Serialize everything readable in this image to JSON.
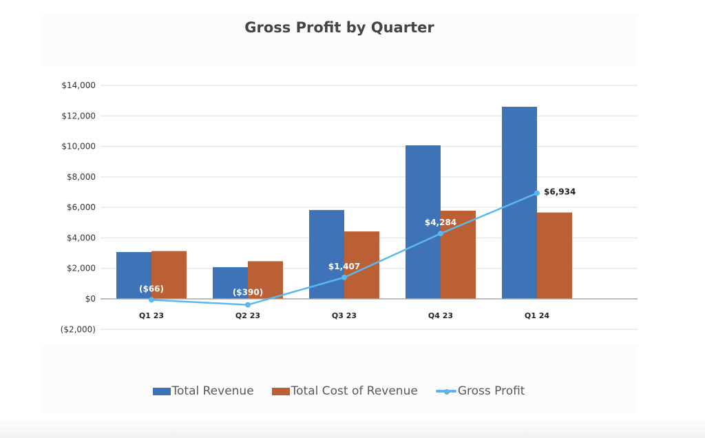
{
  "chart_data": {
    "type": "bar",
    "title": "Gross Profit by Quarter",
    "xlabel": "",
    "ylabel": "",
    "categories": [
      "Q1 23",
      "Q2 23",
      "Q3 23",
      "Q4 23",
      "Q1 24"
    ],
    "ylim": [
      -2000,
      14000
    ],
    "yticks": [
      -2000,
      0,
      2000,
      4000,
      6000,
      8000,
      10000,
      12000,
      14000
    ],
    "ytick_labels": [
      "($2,000)",
      "$0",
      "$2,000",
      "$4,000",
      "$6,000",
      "$8,000",
      "$10,000",
      "$12,000",
      "$14,000"
    ],
    "grid": true,
    "legend_position": "bottom",
    "series": [
      {
        "name": "Total Revenue",
        "type": "bar",
        "color": "#3f73b8",
        "values": [
          3070,
          2080,
          5830,
          10070,
          12600
        ]
      },
      {
        "name": "Total Cost of Revenue",
        "type": "bar",
        "color": "#bb5f35",
        "values": [
          3136,
          2470,
          4423,
          5786,
          5666
        ]
      },
      {
        "name": "Gross Profit",
        "type": "line",
        "color": "#5bb8ef",
        "values": [
          -66,
          -390,
          1407,
          4284,
          6934
        ],
        "data_labels": [
          "($66)",
          "($390)",
          "$1,407",
          "$4,284",
          "$6,934"
        ]
      }
    ]
  }
}
